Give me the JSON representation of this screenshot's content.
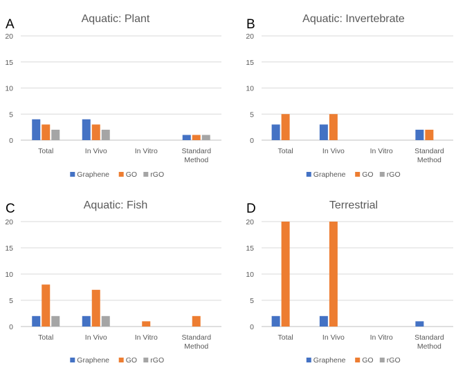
{
  "colors": {
    "Graphene": "#4472c4",
    "GO": "#ed7d31",
    "rGO": "#a5a5a5"
  },
  "chart_data": [
    {
      "panel": "A",
      "type": "bar",
      "title": "Aquatic: Plant",
      "categories": [
        "Total",
        "In Vivo",
        "In Vitro",
        "Standard Method"
      ],
      "yticks": [
        "0",
        "5",
        "10",
        "15",
        "20"
      ],
      "ylim": [
        0,
        20
      ],
      "legend": "bottom",
      "series": [
        {
          "name": "Graphene",
          "values": [
            4,
            4,
            0,
            1
          ]
        },
        {
          "name": "GO",
          "values": [
            3,
            3,
            0,
            1
          ]
        },
        {
          "name": "rGO",
          "values": [
            2,
            2,
            0,
            1
          ]
        }
      ]
    },
    {
      "panel": "B",
      "type": "bar",
      "title": "Aquatic: Invertebrate",
      "categories": [
        "Total",
        "In Vivo",
        "In Vitro",
        "Standard Method"
      ],
      "yticks": [
        "0",
        "5",
        "10",
        "15",
        "20"
      ],
      "ylim": [
        0,
        20
      ],
      "legend": "bottom",
      "series": [
        {
          "name": "Graphene",
          "values": [
            3,
            3,
            0,
            2
          ]
        },
        {
          "name": "GO",
          "values": [
            5,
            5,
            0,
            2
          ]
        },
        {
          "name": "rGO",
          "values": [
            0,
            0,
            0,
            0
          ]
        }
      ]
    },
    {
      "panel": "C",
      "type": "bar",
      "title": "Aquatic: Fish",
      "categories": [
        "Total",
        "In Vivo",
        "In Vitro",
        "Standard Method"
      ],
      "yticks": [
        "0",
        "5",
        "10",
        "15",
        "20"
      ],
      "ylim": [
        0,
        20
      ],
      "legend": "bottom",
      "series": [
        {
          "name": "Graphene",
          "values": [
            2,
            2,
            0,
            0
          ]
        },
        {
          "name": "GO",
          "values": [
            8,
            7,
            1,
            2
          ]
        },
        {
          "name": "rGO",
          "values": [
            2,
            2,
            0,
            0
          ]
        }
      ]
    },
    {
      "panel": "D",
      "type": "bar",
      "title": "Terrestrial",
      "categories": [
        "Total",
        "In Vivo",
        "In Vitro",
        "Standard Method"
      ],
      "yticks": [
        "0",
        "5",
        "10",
        "15",
        "20"
      ],
      "ylim": [
        0,
        20
      ],
      "legend": "bottom",
      "series": [
        {
          "name": "Graphene",
          "values": [
            2,
            2,
            0,
            1
          ]
        },
        {
          "name": "GO",
          "values": [
            20,
            20,
            0,
            0
          ]
        },
        {
          "name": "rGO",
          "values": [
            0,
            0,
            0,
            0
          ]
        }
      ]
    }
  ]
}
